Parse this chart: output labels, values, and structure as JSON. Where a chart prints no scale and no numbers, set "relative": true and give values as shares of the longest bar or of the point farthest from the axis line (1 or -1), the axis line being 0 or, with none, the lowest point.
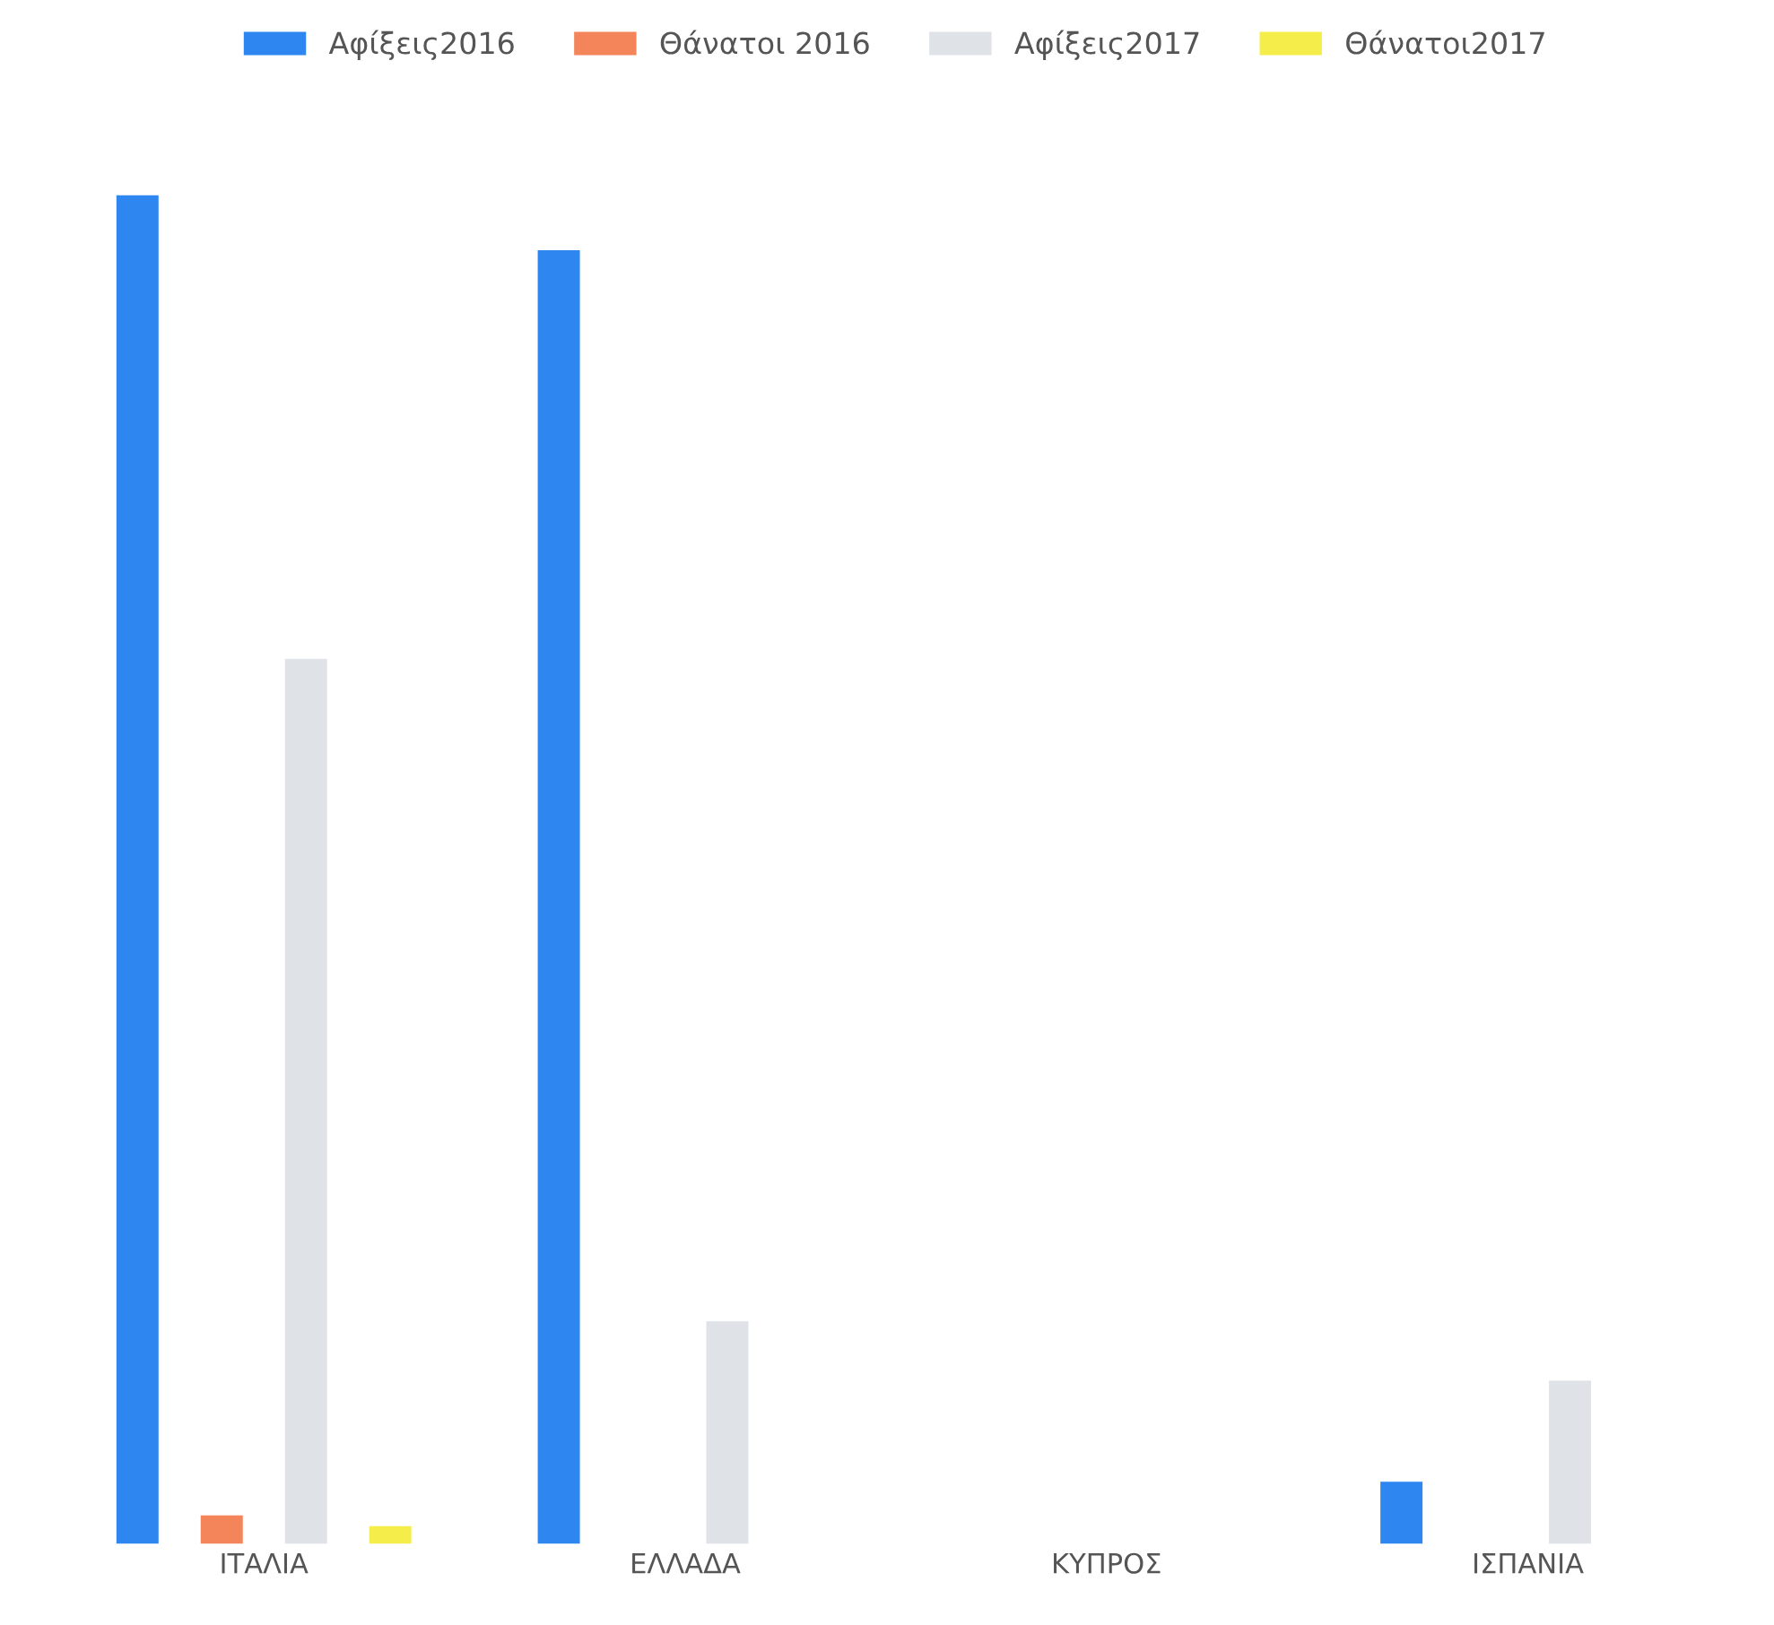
{
  "chart_data": {
    "type": "bar",
    "relative": true,
    "legend": "top",
    "grid": false,
    "categories": [
      "ΙΤΑΛΙΑ",
      "ΕΛΛΑΔΑ",
      "ΚΥΠΡΟΣ",
      "ΙΣΠΑΝΙΑ"
    ],
    "series": [
      {
        "name": "Αφίξεις2016",
        "color": "#2e86f0",
        "values": [
          1,
          0.959,
          null,
          0.046
        ]
      },
      {
        "name": "Θάνατοι 2016",
        "color": "#f4845a",
        "values": [
          0.021,
          null,
          null,
          null
        ]
      },
      {
        "name": "Αφίξεις2017",
        "color": "#dfe3e8",
        "values": [
          0.656,
          0.165,
          null,
          0.121
        ]
      },
      {
        "name": "Θάνατοι2017",
        "color": "#f5ee4a",
        "values": [
          0.013,
          null,
          null,
          null
        ]
      }
    ]
  }
}
